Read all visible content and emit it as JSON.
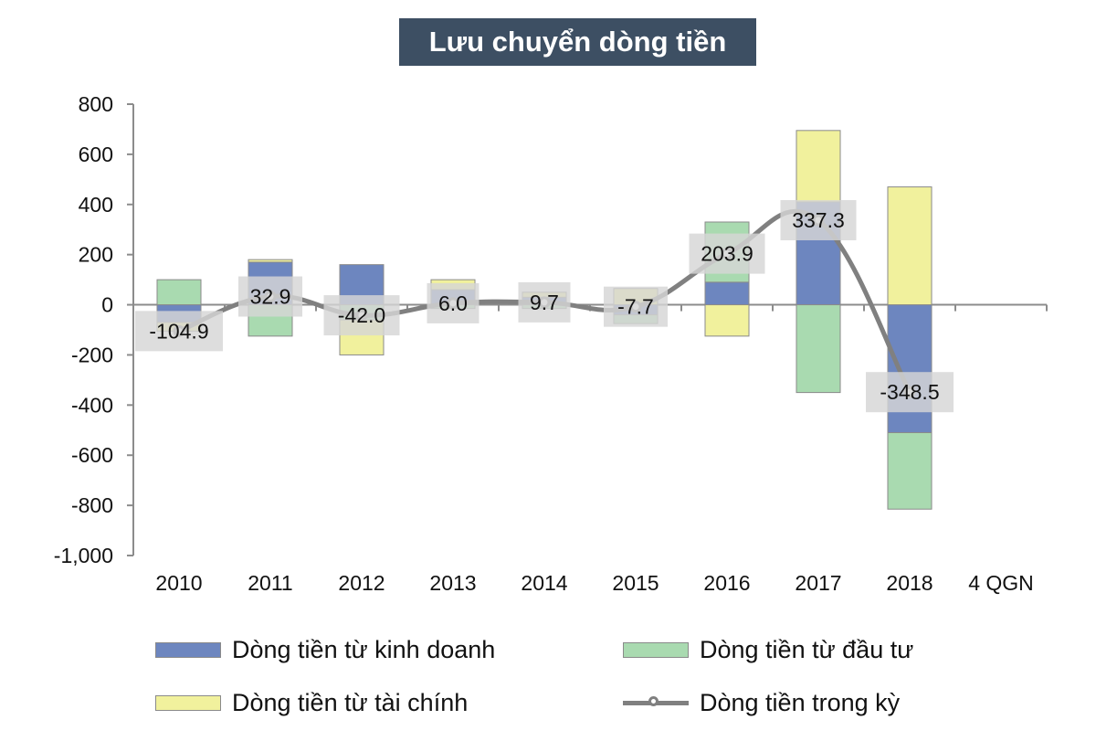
{
  "chart_data": {
    "type": "bar",
    "stacked": true,
    "title": "Lưu chuyển dòng tiền",
    "categories": [
      "2010",
      "2011",
      "2012",
      "2013",
      "2014",
      "2015",
      "2016",
      "2017",
      "2018",
      "4 QGN"
    ],
    "ylim": [
      -1000,
      800
    ],
    "yticks": [
      800,
      600,
      400,
      200,
      0,
      -200,
      -400,
      -600,
      -800,
      -1000
    ],
    "ytick_labels": [
      "800",
      "600",
      "400",
      "200",
      "0",
      "-200",
      "-400",
      "-600",
      "-800",
      "-1,000"
    ],
    "series": [
      {
        "name": "Dòng tiền từ kinh doanh",
        "type": "bar",
        "color": "#6d86bf",
        "values": [
          -70,
          170,
          160,
          60,
          30,
          -40,
          90,
          410,
          -510,
          null
        ]
      },
      {
        "name": "Dòng tiền từ đầu tư",
        "type": "bar",
        "color": "#a9dab0",
        "values": [
          100,
          -125,
          -60,
          -15,
          -15,
          -35,
          240,
          -350,
          -305,
          null
        ]
      },
      {
        "name": "Dòng tiền từ tài chính",
        "type": "bar",
        "color": "#f1f19d",
        "values": [
          -35,
          10,
          -140,
          40,
          20,
          65,
          -125,
          285,
          470,
          null
        ]
      },
      {
        "name": "Dòng tiền trong kỳ",
        "type": "line",
        "color": "#808080",
        "values": [
          -104.9,
          32.9,
          -42.0,
          6.0,
          9.7,
          -7.7,
          203.9,
          337.3,
          -348.5,
          null
        ],
        "labels": [
          "-104.9",
          "32.9",
          "-42.0",
          "6.0",
          "9.7",
          "-7.7",
          "203.9",
          "337.3",
          "-348.5",
          ""
        ]
      }
    ],
    "legend": "bottom"
  }
}
